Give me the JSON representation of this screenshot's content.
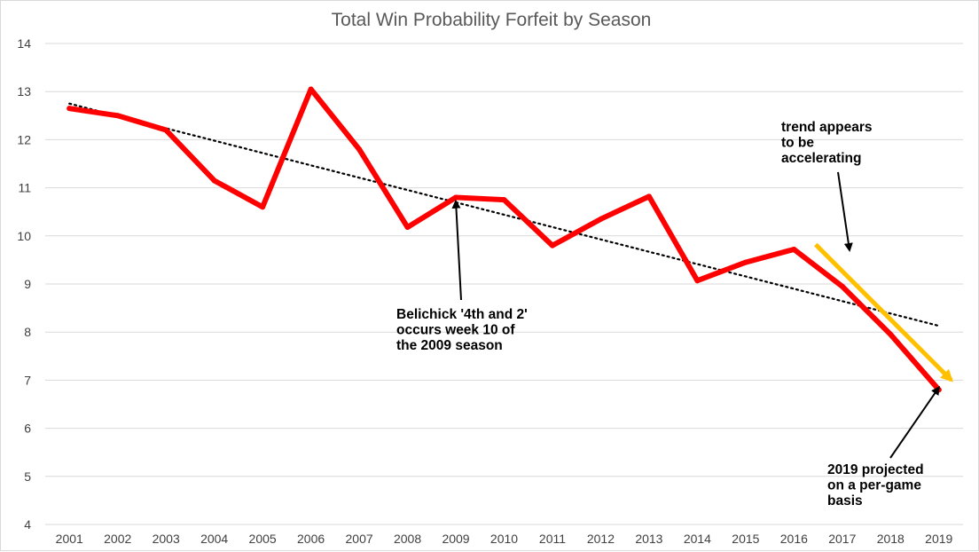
{
  "chart_data": {
    "type": "line",
    "title": "Total Win Probability Forfeit by Season",
    "xlabel": "",
    "ylabel": "",
    "categories": [
      "2001",
      "2002",
      "2003",
      "2004",
      "2005",
      "2006",
      "2007",
      "2008",
      "2009",
      "2010",
      "2011",
      "2012",
      "2013",
      "2014",
      "2015",
      "2016",
      "2017",
      "2018",
      "2019"
    ],
    "ylim": [
      4,
      14
    ],
    "yticks": [
      4,
      5,
      6,
      7,
      8,
      9,
      10,
      11,
      12,
      13,
      14
    ],
    "grid": true,
    "legend": "none",
    "series": [
      {
        "values": [
          12.65,
          12.5,
          12.2,
          11.15,
          10.6,
          13.05,
          11.8,
          10.18,
          10.8,
          10.75,
          9.8,
          10.35,
          10.82,
          9.07,
          9.45,
          9.72,
          8.95,
          7.95,
          6.8
        ],
        "color": "#ff0000"
      }
    ],
    "trendline": {
      "style": "dotted",
      "color": "#000000",
      "start": 12.75,
      "end": 8.13
    },
    "emphasis_arrow": {
      "color": "#ffc000",
      "from": [
        "2017",
        9.82
      ],
      "to": [
        "2019",
        7.0
      ]
    },
    "annotations": [
      {
        "id": "belichick",
        "lines": [
          "Belichick '4th and 2'",
          "occurs week 10 of",
          "the 2009 season"
        ],
        "arrow_to": [
          "2009",
          10.72
        ]
      },
      {
        "id": "trend",
        "lines": [
          "trend appears",
          "to be",
          "accelerating"
        ],
        "arrow_to": [
          "2018",
          9.65
        ]
      },
      {
        "id": "projection",
        "lines": [
          "2019 projected",
          "on a per-game",
          "basis"
        ],
        "arrow_to": [
          "2019",
          6.85
        ]
      }
    ]
  }
}
